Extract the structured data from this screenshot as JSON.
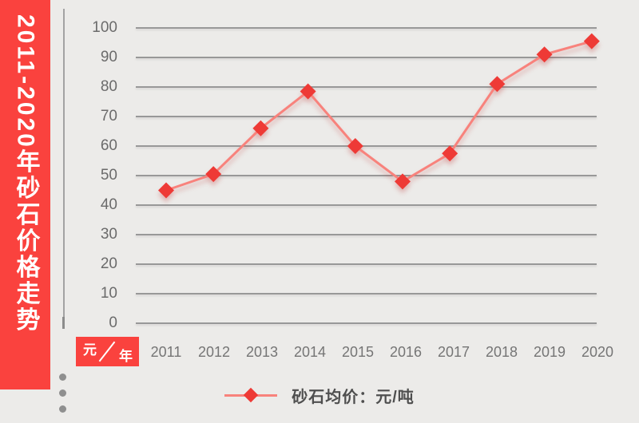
{
  "page": {
    "background": "#ecebe9",
    "accent_red": "#fa423e"
  },
  "banner": {
    "title": "2011-2020年砂石价格走势",
    "background": "#fa423e",
    "text_color": "#ffffff"
  },
  "unit_badge": {
    "top": "元",
    "bottom": "年",
    "background": "#fa423e"
  },
  "legend": {
    "label": "砂石均价：元/吨"
  },
  "chart_data": {
    "type": "line",
    "title": "2011-2020年砂石价格走势",
    "categories": [
      "2011",
      "2012",
      "2013",
      "2014",
      "2015",
      "2016",
      "2017",
      "2018",
      "2019",
      "2020"
    ],
    "series": [
      {
        "name": "砂石均价：元/吨",
        "values": [
          45,
          50.5,
          66,
          78.5,
          60,
          48,
          57.5,
          81,
          91,
          95.5
        ]
      }
    ],
    "ylim": [
      0,
      100
    ],
    "ytick_step": 10,
    "xlabel": "年",
    "ylabel": "元",
    "grid": true,
    "legend_position": "bottom",
    "line_color": "#f8827c",
    "marker_color": "#ee3a36",
    "marker_shape": "diamond",
    "grid_color": "#8d8d8d"
  }
}
